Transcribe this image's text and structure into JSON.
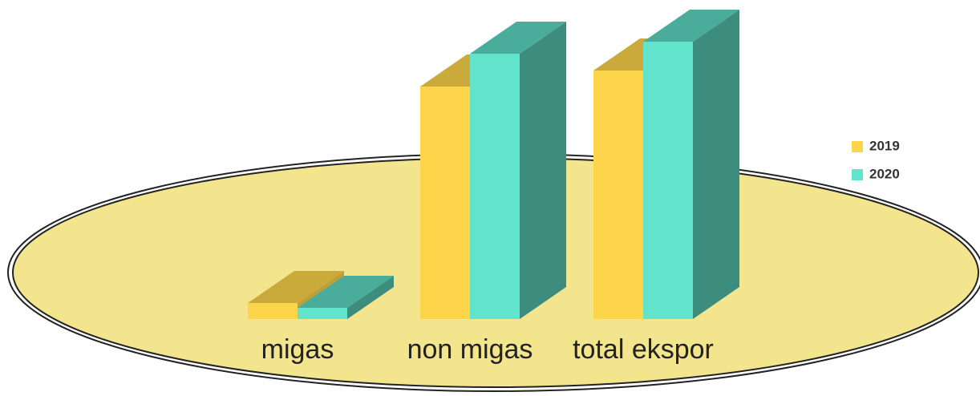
{
  "chart_data": {
    "type": "bar3d",
    "categories": [
      "migas",
      "non migas",
      "total ekspor"
    ],
    "series": [
      {
        "name": "2019",
        "color": "#fdd54a",
        "values": [
          20,
          290,
          310
        ]
      },
      {
        "name": "2020",
        "color": "#62e3cc",
        "values": [
          14,
          331,
          346
        ]
      }
    ],
    "ylim": [
      0,
      350
    ]
  }
}
